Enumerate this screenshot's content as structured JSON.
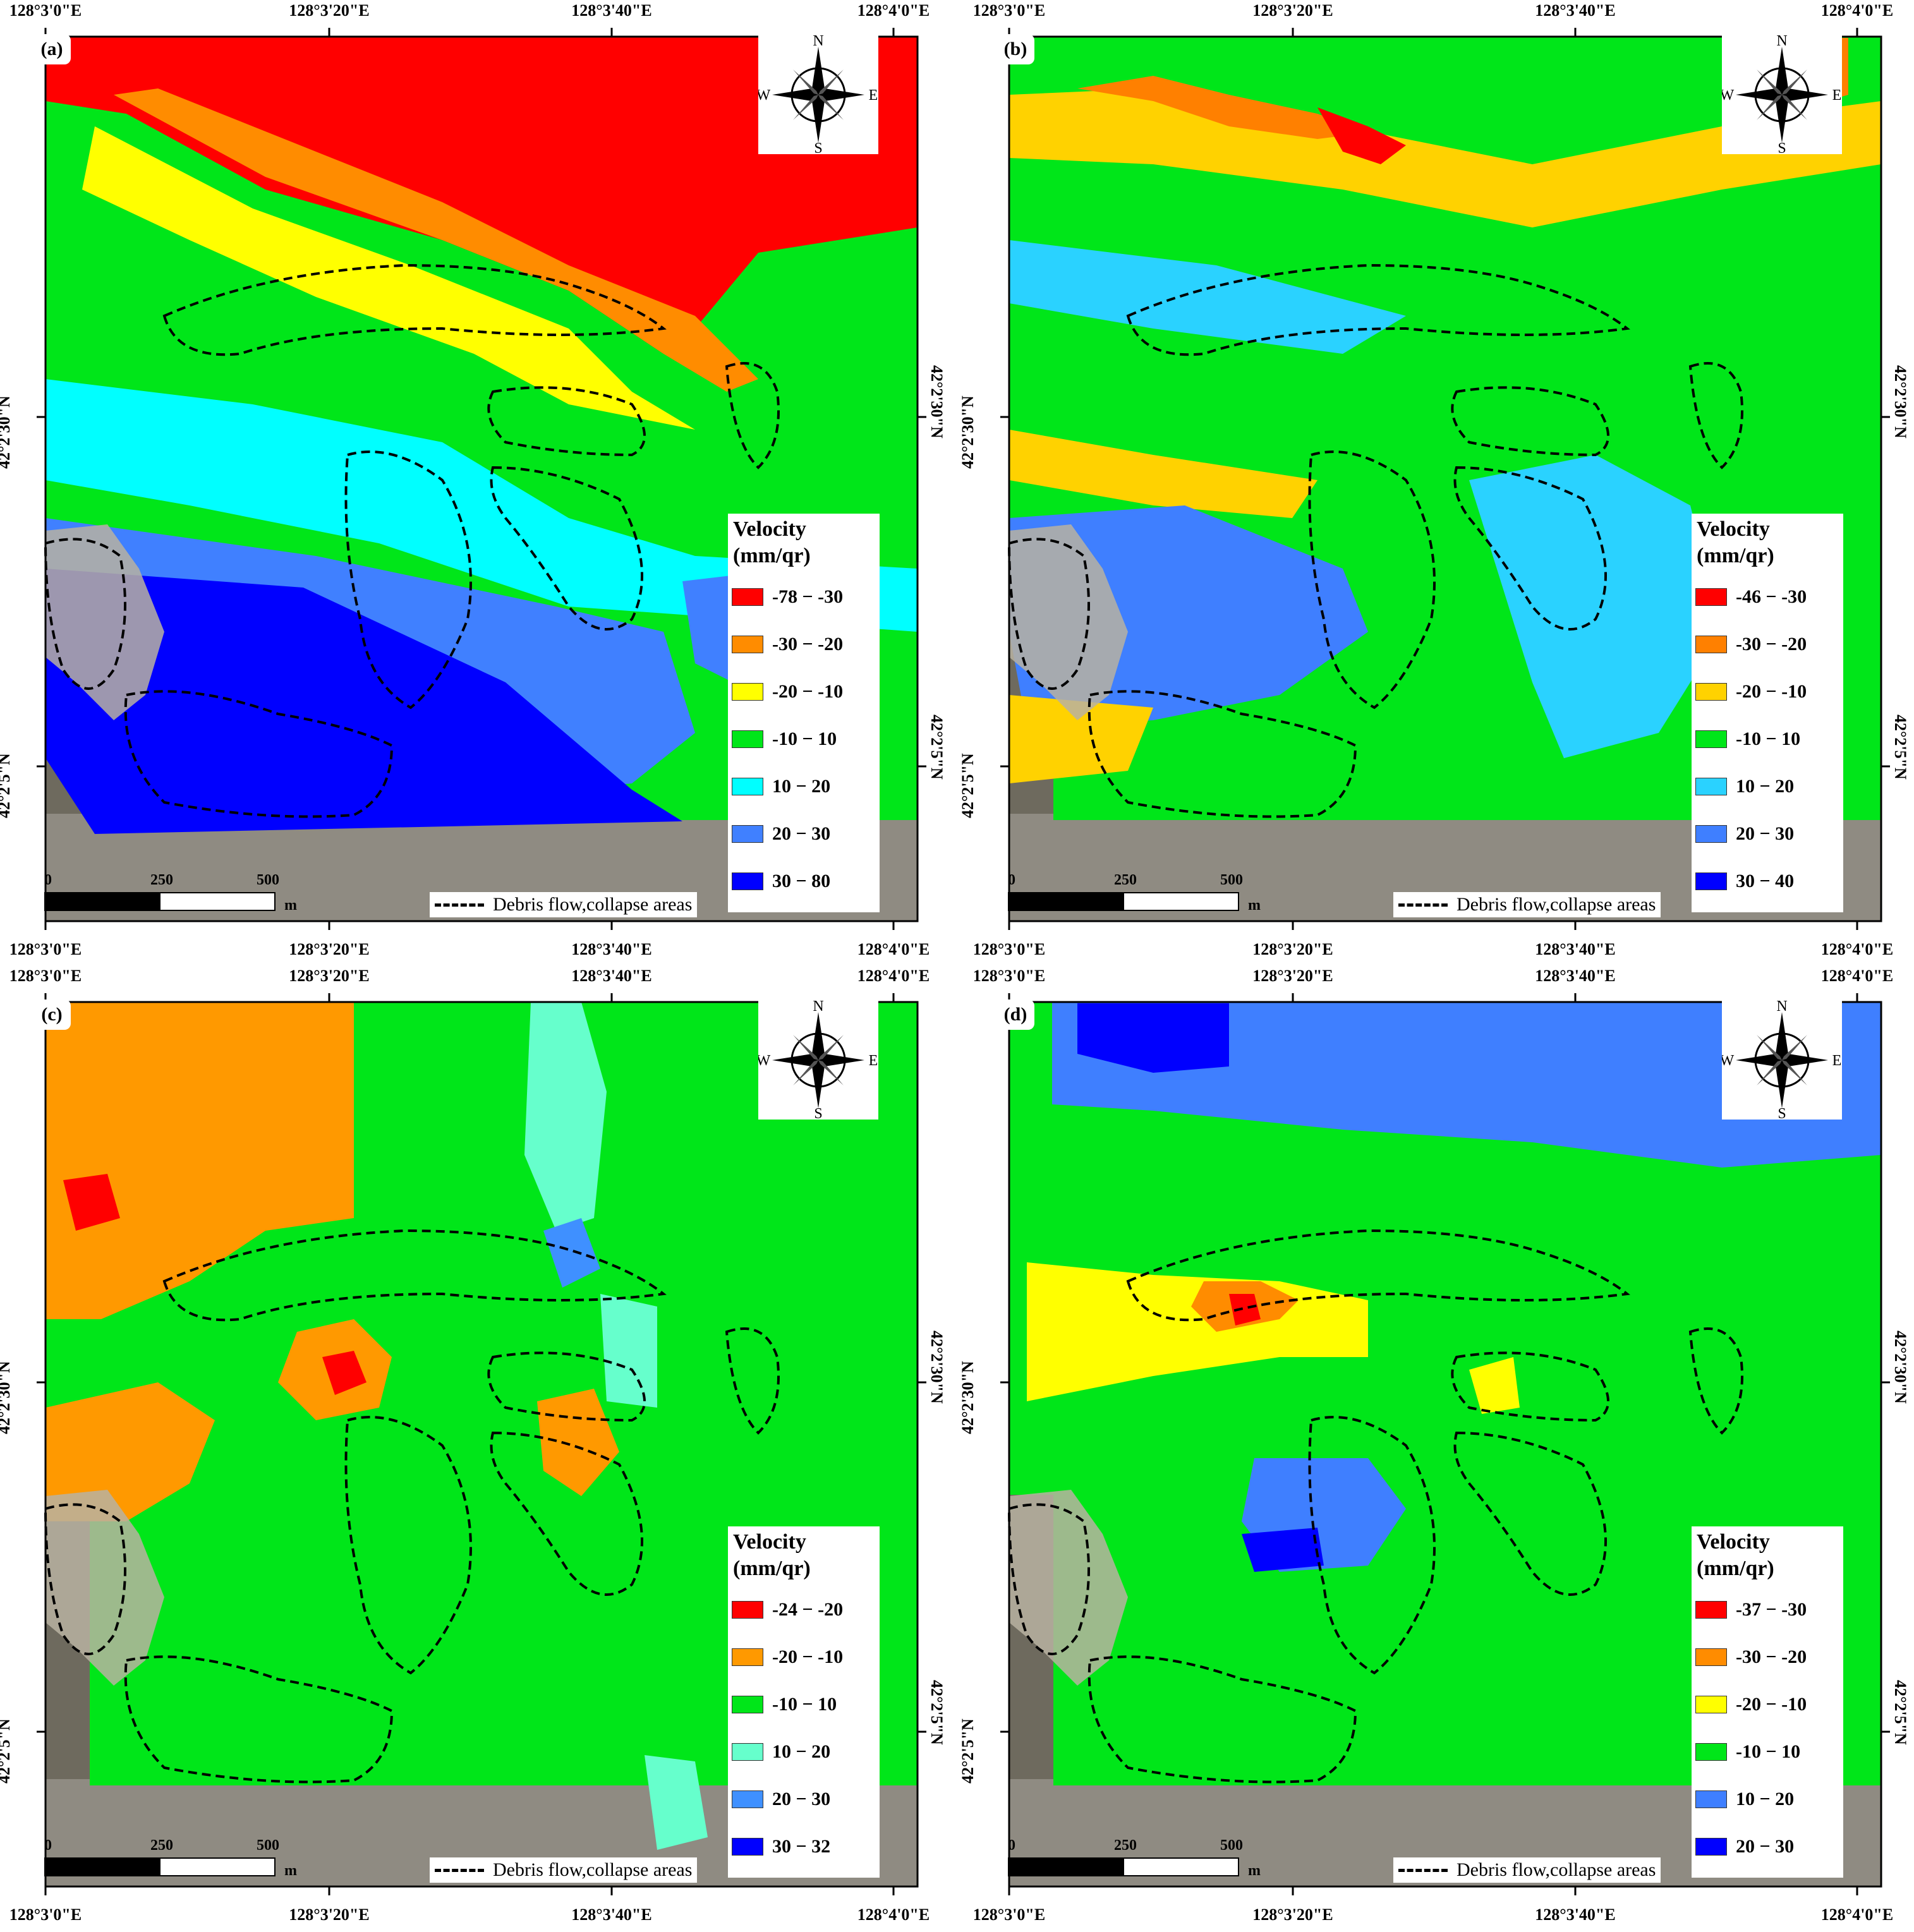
{
  "axes": {
    "longitude_ticks": [
      "128°3'0\"E",
      "128°3'20\"E",
      "128°3'40\"E",
      "128°4'0\"E"
    ],
    "latitude_ticks": [
      "42°2'30\"N",
      "42°2'5\"N"
    ]
  },
  "scale_bar": {
    "labels": [
      "0",
      "250",
      "500"
    ],
    "unit": "m"
  },
  "compass": {
    "n": "N",
    "s": "S",
    "e": "E",
    "w": "W"
  },
  "debris_legend": "Debris flow,collapse areas",
  "legend_title": [
    "Velocity",
    "(mm/qr)"
  ],
  "panels": [
    {
      "label": "(a)",
      "classes": [
        {
          "range": "-78 − -30",
          "color": "#ff0000"
        },
        {
          "range": "-30 − -20",
          "color": "#ff8c00"
        },
        {
          "range": "-20 − -10",
          "color": "#ffff00"
        },
        {
          "range": "-10 − 10",
          "color": "#00e619"
        },
        {
          "range": "10 − 20",
          "color": "#00ffff"
        },
        {
          "range": "20 − 30",
          "color": "#4080ff"
        },
        {
          "range": "30 − 80",
          "color": "#0000ff"
        }
      ]
    },
    {
      "label": "(b)",
      "classes": [
        {
          "range": "-46 − -30",
          "color": "#ff0000"
        },
        {
          "range": "-30 − -20",
          "color": "#ff8000"
        },
        {
          "range": "-20 − -10",
          "color": "#ffd200"
        },
        {
          "range": "-10 − 10",
          "color": "#00e619"
        },
        {
          "range": "10 − 20",
          "color": "#2ad2ff"
        },
        {
          "range": "20 − 30",
          "color": "#3f7fff"
        },
        {
          "range": "30 − 40",
          "color": "#0000ff"
        }
      ]
    },
    {
      "label": "(c)",
      "classes": [
        {
          "range": "-24 − -20",
          "color": "#ff0000"
        },
        {
          "range": "-20 − -10",
          "color": "#ff9900"
        },
        {
          "range": "-10 − 10",
          "color": "#00e619"
        },
        {
          "range": "10 − 20",
          "color": "#66ffcc"
        },
        {
          "range": "20 − 30",
          "color": "#3f90ff"
        },
        {
          "range": "30 − 32",
          "color": "#0000ff"
        }
      ]
    },
    {
      "label": "(d)",
      "classes": [
        {
          "range": "-37 − -30",
          "color": "#ff0000"
        },
        {
          "range": "-30 − -20",
          "color": "#ff8c00"
        },
        {
          "range": "-20 − -10",
          "color": "#ffff00"
        },
        {
          "range": "-10 − 10",
          "color": "#00e619"
        },
        {
          "range": "10 − 20",
          "color": "#3f7fff"
        },
        {
          "range": "20 − 30",
          "color": "#0000ff"
        }
      ]
    }
  ]
}
